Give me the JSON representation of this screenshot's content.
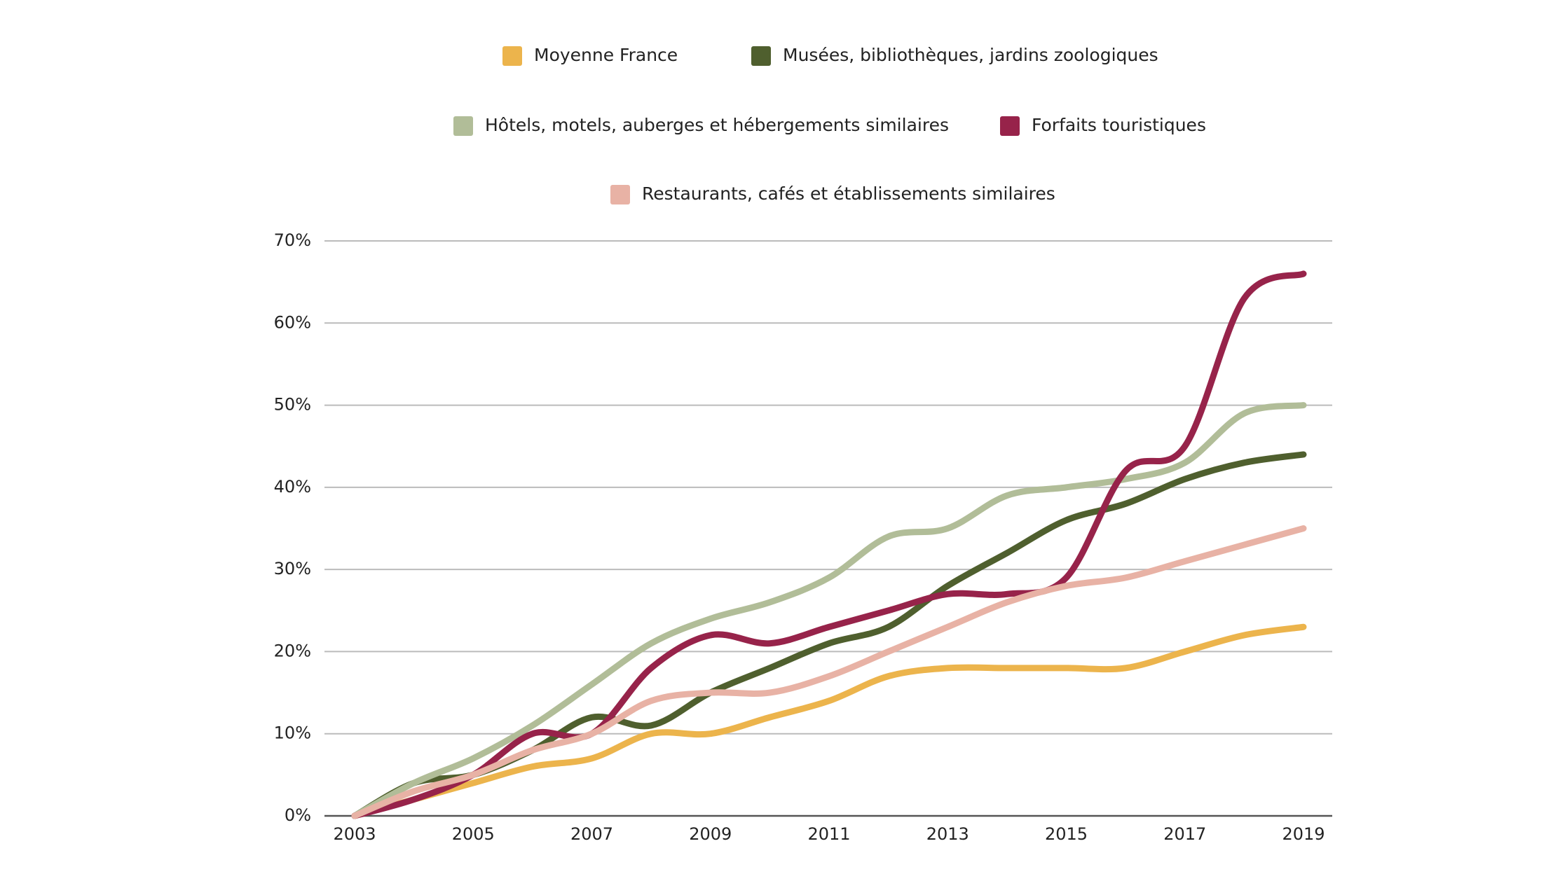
{
  "chart_data": {
    "type": "line",
    "x": [
      2003,
      2004,
      2005,
      2006,
      2007,
      2008,
      2009,
      2010,
      2011,
      2012,
      2013,
      2014,
      2015,
      2016,
      2017,
      2018,
      2019
    ],
    "xlim": [
      2003,
      2019
    ],
    "xticks": [
      2003,
      2005,
      2007,
      2009,
      2011,
      2013,
      2015,
      2017,
      2019
    ],
    "ylim": [
      0,
      70
    ],
    "yticks": [
      {
        "value": 0,
        "label": "0%"
      },
      {
        "value": 10,
        "label": "10%"
      },
      {
        "value": 20,
        "label": "20%"
      },
      {
        "value": 30,
        "label": "30%"
      },
      {
        "value": 40,
        "label": "40%"
      },
      {
        "value": 50,
        "label": "50%"
      },
      {
        "value": 60,
        "label": "60%"
      },
      {
        "value": 70,
        "label": "70%"
      }
    ],
    "grid": true,
    "legend": "top",
    "series": [
      {
        "name": "Moyenne France",
        "color": "#ecb44c",
        "values": [
          0,
          2,
          4,
          6,
          7,
          10,
          10,
          12,
          14,
          17,
          18,
          18,
          18,
          18,
          20,
          22,
          23
        ]
      },
      {
        "name": "Musées, bibliothèques, jardins zoologiques",
        "color": "#4f5f2e",
        "values": [
          0,
          4,
          5,
          8,
          12,
          11,
          15,
          18,
          21,
          23,
          28,
          32,
          36,
          38,
          41,
          43,
          44
        ]
      },
      {
        "name": "Hôtels, motels, auberges et hébergements similaires",
        "color": "#b1bd98",
        "values": [
          0,
          4,
          7,
          11,
          16,
          21,
          24,
          26,
          29,
          34,
          35,
          39,
          40,
          41,
          43,
          49,
          50
        ]
      },
      {
        "name": "Forfaits touristiques",
        "color": "#97234a",
        "values": [
          0,
          2,
          5,
          10,
          10,
          18,
          22,
          21,
          23,
          25,
          27,
          27,
          29,
          42,
          45,
          63,
          66
        ]
      },
      {
        "name": "Restaurants, cafés et établissements similaires",
        "color": "#e8b2a5",
        "values": [
          0,
          3,
          5,
          8,
          10,
          14,
          15,
          15,
          17,
          20,
          23,
          26,
          28,
          29,
          31,
          33,
          35
        ]
      }
    ]
  }
}
